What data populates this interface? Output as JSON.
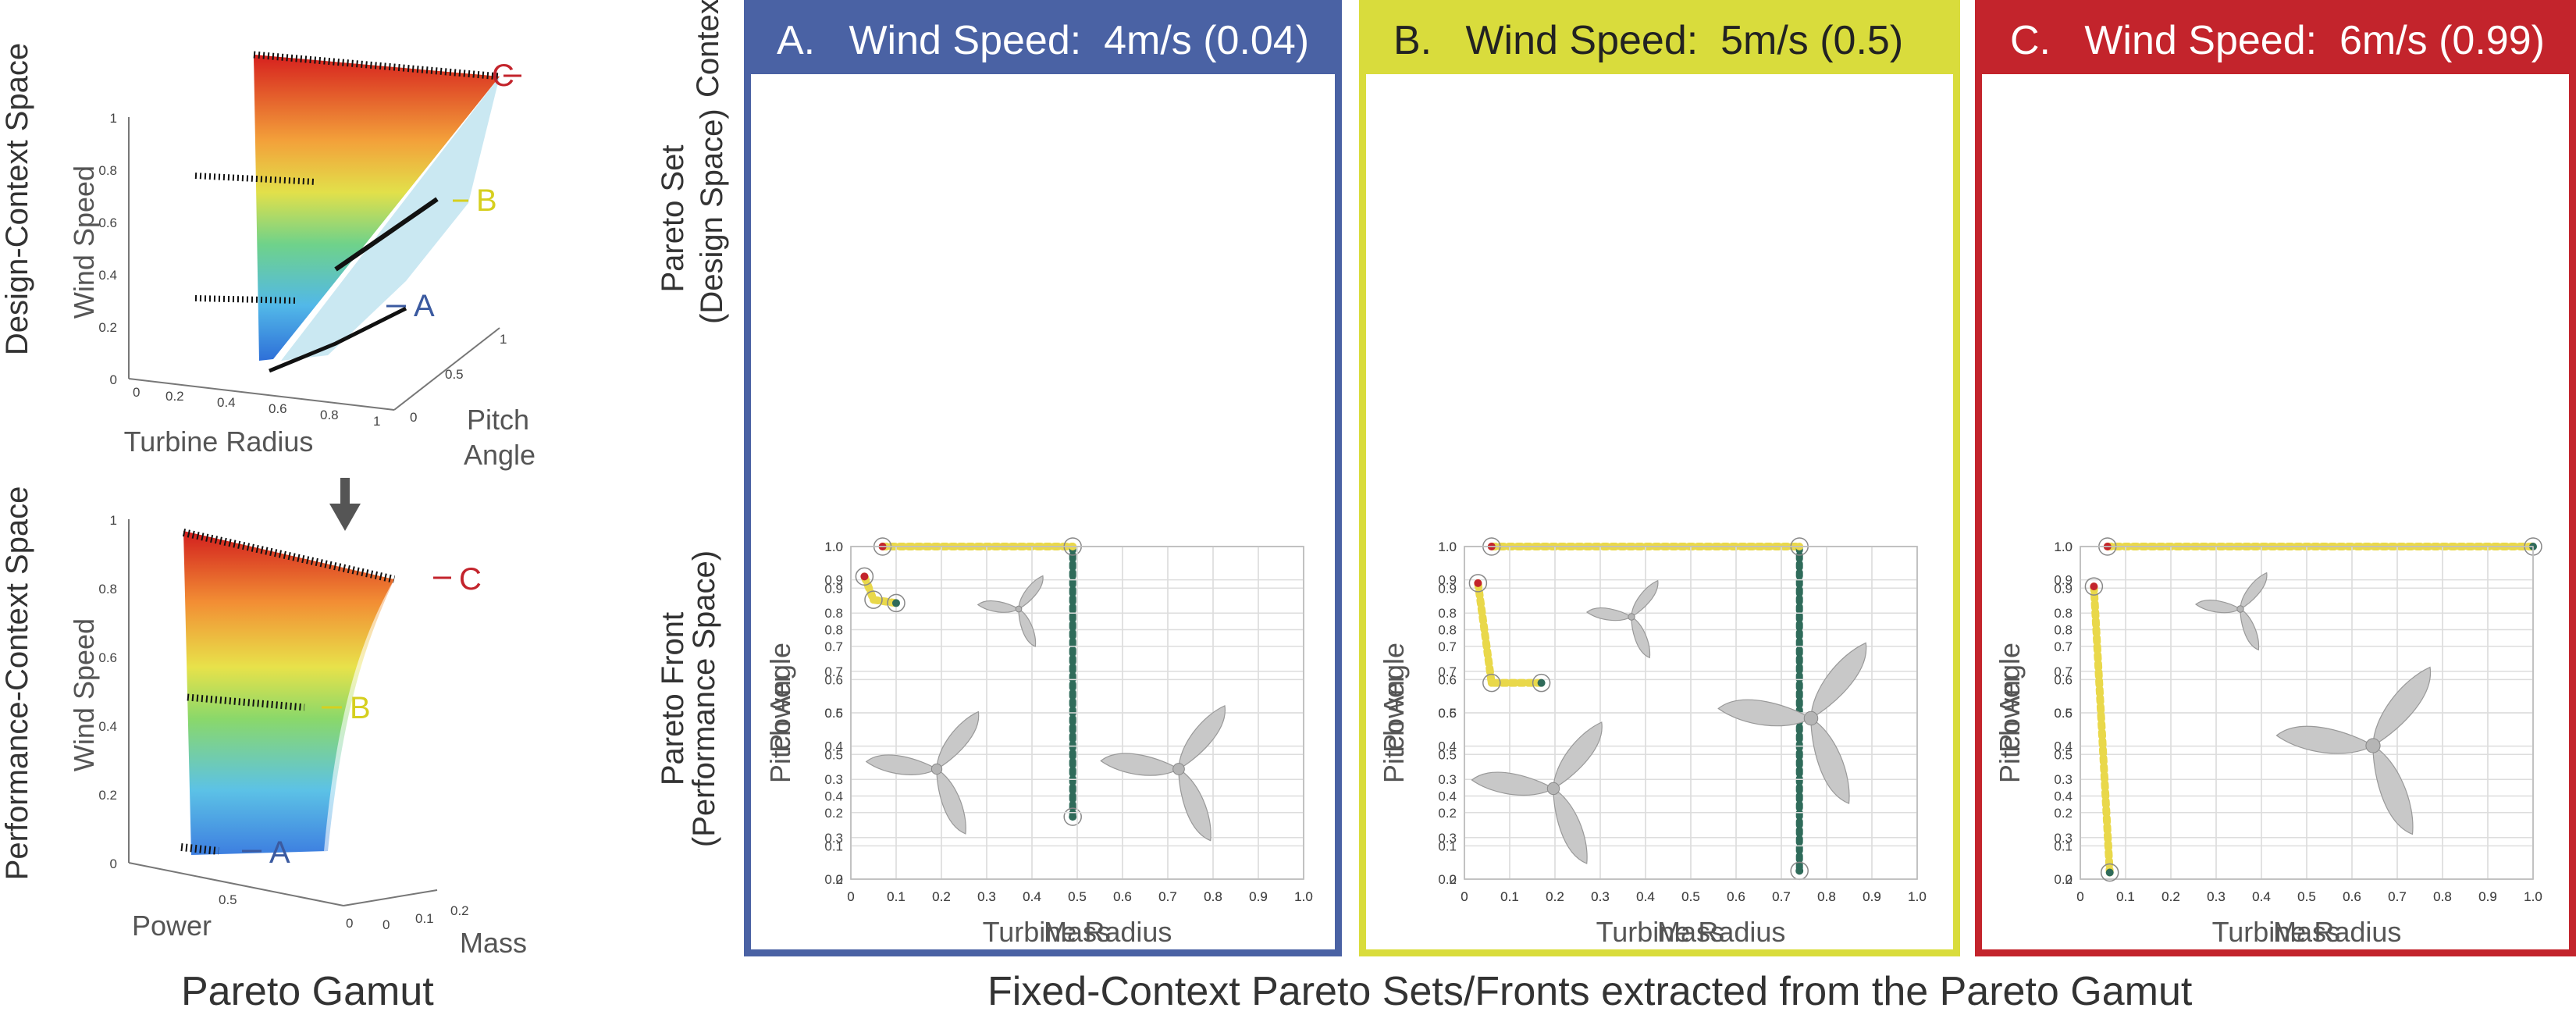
{
  "colors": {
    "A": "#4a62a4",
    "B": "#d9dc3c",
    "C": "#c3242c",
    "label_A": "#3b5aa0",
    "label_B": "#d6cf1f",
    "label_C": "#c3242c",
    "arrow": "#555555",
    "set_point": "#e9d84a",
    "stem_point": "#2f6b5a"
  },
  "left": {
    "top_row_label": "Design-Context Space",
    "bottom_row_label": "Performance-Context Space",
    "caption": "Pareto Gamut",
    "design_plot": {
      "z_label": "Wind Speed",
      "x_label": "Turbine Radius",
      "y_label_line1": "Pitch",
      "y_label_line2": "Angle",
      "z_ticks": [
        "1",
        "0.8",
        "0.6",
        "0.4",
        "0.2",
        "0"
      ],
      "x_ticks": [
        "0",
        "0.2",
        "0.4",
        "0.6",
        "0.8",
        "1"
      ],
      "y_ticks": [
        "0",
        "0.5",
        "1"
      ]
    },
    "perf_plot": {
      "z_label": "Wind Speed",
      "x_label": "Power",
      "y_label": "Mass",
      "z_ticks": [
        "1",
        "0.8",
        "0.6",
        "0.4",
        "0.2",
        "0"
      ],
      "x_ticks": [
        "0.5",
        "0"
      ],
      "y_ticks": [
        "0",
        "0.1",
        "0.2"
      ]
    },
    "slice_labels": [
      "A",
      "B",
      "C"
    ]
  },
  "middle": {
    "context_label": "Context",
    "set_label_line1": "Pareto Set",
    "set_label_line2": "(Design Space)",
    "front_label_line1": "Pareto Front",
    "front_label_line2": "(Performance Space)",
    "caption": "Fixed-Context Pareto Sets/Fronts extracted from the Pareto Gamut"
  },
  "panels": [
    {
      "key": "A",
      "title": "A.   Wind Speed:  4m/s (0.04)"
    },
    {
      "key": "B",
      "title": "B.   Wind Speed:  5m/s (0.5)"
    },
    {
      "key": "C",
      "title": "C.   Wind Speed:  6m/s (0.99)"
    }
  ],
  "chart_data": [
    {
      "type": "scatter",
      "panel": "A",
      "role": "Pareto Set (Design Space)",
      "xlabel": "Turbine Radius",
      "ylabel": "Pitch Angle",
      "xlim": [
        0,
        1.0
      ],
      "ylim": [
        0.2,
        1.0
      ],
      "xticks": [
        "0",
        "0.1",
        "0.2",
        "0.3",
        "0.4",
        "0.5",
        "0.6",
        "0.7",
        "0.8",
        "0.9",
        "1.0"
      ],
      "yticks": [
        "0.2",
        "0.3",
        "0.4",
        "0.5",
        "0.6",
        "0.7",
        "0.8",
        "0.9",
        "1.0"
      ],
      "segments": [
        {
          "x": [
            0.07,
            0.49
          ],
          "y": [
            1.0,
            1.0
          ]
        },
        {
          "x": [
            0.49,
            0.49
          ],
          "y": [
            1.0,
            0.35
          ]
        }
      ],
      "highlights": [
        {
          "x": 0.07,
          "y": 1.0
        },
        {
          "x": 0.49,
          "y": 1.0
        },
        {
          "x": 0.49,
          "y": 0.35
        }
      ]
    },
    {
      "type": "scatter",
      "panel": "B",
      "role": "Pareto Set (Design Space)",
      "xlabel": "Turbine Radius",
      "ylabel": "Pitch Angle",
      "xlim": [
        0,
        1.0
      ],
      "ylim": [
        0.2,
        1.0
      ],
      "xticks": [
        "0",
        "0.1",
        "0.2",
        "0.3",
        "0.4",
        "0.5",
        "0.6",
        "0.7",
        "0.8",
        "0.9",
        "1.0"
      ],
      "yticks": [
        "0.2",
        "0.3",
        "0.4",
        "0.5",
        "0.6",
        "0.7",
        "0.8",
        "0.9",
        "1.0"
      ],
      "segments": [
        {
          "x": [
            0.06,
            0.74
          ],
          "y": [
            1.0,
            1.0
          ]
        },
        {
          "x": [
            0.74,
            0.74
          ],
          "y": [
            1.0,
            0.22
          ]
        }
      ],
      "highlights": [
        {
          "x": 0.06,
          "y": 1.0
        },
        {
          "x": 0.74,
          "y": 1.0
        },
        {
          "x": 0.74,
          "y": 0.22
        }
      ]
    },
    {
      "type": "scatter",
      "panel": "C",
      "role": "Pareto Set (Design Space)",
      "xlabel": "Turbine Radius",
      "ylabel": "Pitch Angle",
      "xlim": [
        0,
        1.0
      ],
      "ylim": [
        0.2,
        1.0
      ],
      "xticks": [
        "0",
        "0.1",
        "0.2",
        "0.3",
        "0.4",
        "0.5",
        "0.6",
        "0.7",
        "0.8",
        "0.9",
        "1.0"
      ],
      "yticks": [
        "0.2",
        "0.3",
        "0.4",
        "0.5",
        "0.6",
        "0.7",
        "0.8",
        "0.9",
        "1.0"
      ],
      "segments": [
        {
          "x": [
            0.06,
            1.0
          ],
          "y": [
            1.0,
            1.0
          ]
        }
      ],
      "highlights": [
        {
          "x": 0.06,
          "y": 1.0
        },
        {
          "x": 1.0,
          "y": 1.0
        }
      ]
    },
    {
      "type": "scatter",
      "panel": "A",
      "role": "Pareto Front (Performance Space)",
      "xlabel": "Mass",
      "ylabel": "Power",
      "xlim": [
        0,
        1.0
      ],
      "ylim": [
        0,
        1.0
      ],
      "xticks": [
        "0",
        "0.1",
        "0.2",
        "0.3",
        "0.4",
        "0.5",
        "0.6",
        "0.7",
        "0.8",
        "0.9",
        "1.0"
      ],
      "yticks": [
        "0",
        "0.1",
        "0.2",
        "0.3",
        "0.4",
        "0.5",
        "0.6",
        "0.7",
        "0.8",
        "0.9",
        "1.0"
      ],
      "segments": [
        {
          "x": [
            0.03,
            0.05,
            0.1
          ],
          "y": [
            0.91,
            0.84,
            0.83
          ]
        }
      ],
      "highlights": [
        {
          "x": 0.03,
          "y": 0.91
        },
        {
          "x": 0.05,
          "y": 0.84
        },
        {
          "x": 0.1,
          "y": 0.83
        }
      ]
    },
    {
      "type": "scatter",
      "panel": "B",
      "role": "Pareto Front (Performance Space)",
      "xlabel": "Mass",
      "ylabel": "Power",
      "xlim": [
        0,
        1.0
      ],
      "ylim": [
        0,
        1.0
      ],
      "xticks": [
        "0",
        "0.1",
        "0.2",
        "0.3",
        "0.4",
        "0.5",
        "0.6",
        "0.7",
        "0.8",
        "0.9",
        "1.0"
      ],
      "yticks": [
        "0",
        "0.1",
        "0.2",
        "0.3",
        "0.4",
        "0.5",
        "0.6",
        "0.7",
        "0.8",
        "0.9",
        "1.0"
      ],
      "segments": [
        {
          "x": [
            0.03,
            0.06,
            0.17
          ],
          "y": [
            0.89,
            0.59,
            0.59
          ]
        }
      ],
      "highlights": [
        {
          "x": 0.03,
          "y": 0.89
        },
        {
          "x": 0.06,
          "y": 0.59
        },
        {
          "x": 0.17,
          "y": 0.59
        }
      ]
    },
    {
      "type": "scatter",
      "panel": "C",
      "role": "Pareto Front (Performance Space)",
      "xlabel": "Mass",
      "ylabel": "Power",
      "xlim": [
        0,
        1.0
      ],
      "ylim": [
        0,
        1.0
      ],
      "xticks": [
        "0",
        "0.1",
        "0.2",
        "0.3",
        "0.4",
        "0.5",
        "0.6",
        "0.7",
        "0.8",
        "0.9",
        "1.0"
      ],
      "yticks": [
        "0",
        "0.1",
        "0.2",
        "0.3",
        "0.4",
        "0.5",
        "0.6",
        "0.7",
        "0.8",
        "0.9",
        "1.0"
      ],
      "segments": [
        {
          "x": [
            0.03,
            0.065
          ],
          "y": [
            0.88,
            0.02
          ]
        }
      ],
      "highlights": [
        {
          "x": 0.03,
          "y": 0.88
        },
        {
          "x": 0.065,
          "y": 0.02
        }
      ]
    }
  ]
}
